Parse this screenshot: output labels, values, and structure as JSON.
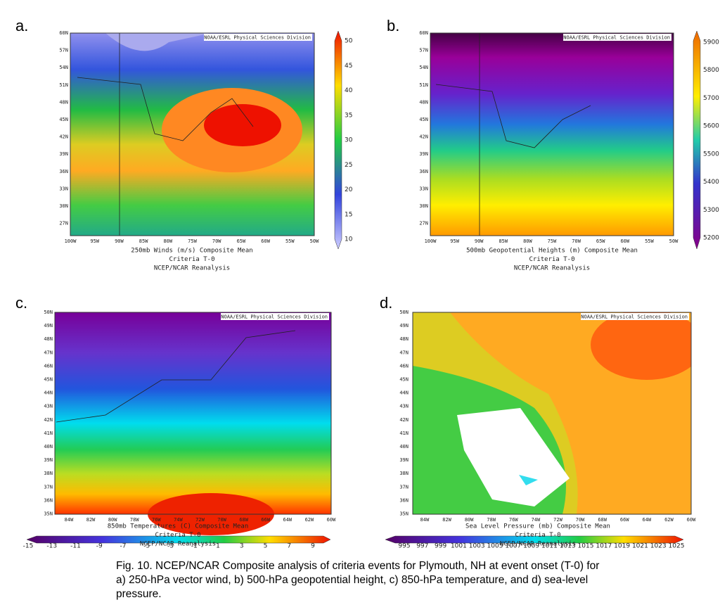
{
  "panels": [
    {
      "letter": "a.",
      "credit": "NOAA/ESRL Physical Sciences Division",
      "lon_ticks": [
        "100W",
        "95W",
        "90W",
        "85W",
        "80W",
        "75W",
        "70W",
        "65W",
        "60W",
        "55W",
        "50W"
      ],
      "lat_ticks": [
        "60N",
        "57N",
        "54N",
        "51N",
        "48N",
        "45N",
        "42N",
        "39N",
        "36N",
        "33N",
        "30N",
        "27N"
      ],
      "caption_lines": [
        "250mb Winds (m/s)    Composite Mean",
        "Criteria T-0",
        "NCEP/NCAR Reanalysis"
      ],
      "colorbar": [
        "10",
        "15",
        "20",
        "25",
        "30",
        "35",
        "40",
        "45",
        "50"
      ]
    },
    {
      "letter": "b.",
      "credit": "NOAA/ESRL Physical Sciences Division",
      "lon_ticks": [
        "100W",
        "95W",
        "90W",
        "85W",
        "80W",
        "75W",
        "70W",
        "65W",
        "60W",
        "55W",
        "50W"
      ],
      "lat_ticks": [
        "60N",
        "57N",
        "54N",
        "51N",
        "48N",
        "45N",
        "42N",
        "39N",
        "36N",
        "33N",
        "30N",
        "27N"
      ],
      "caption_lines": [
        "500mb Geopotential Heights (m)    Composite Mean",
        "Criteria T-0",
        "NCEP/NCAR Reanalysis"
      ],
      "colorbar": [
        "5200",
        "5300",
        "5400",
        "5500",
        "5600",
        "5700",
        "5800",
        "5900"
      ]
    },
    {
      "letter": "c.",
      "credit": "NOAA/ESRL Physical Sciences Division",
      "lon_ticks": [
        "84W",
        "82W",
        "80W",
        "78W",
        "76W",
        "74W",
        "72W",
        "70W",
        "68W",
        "66W",
        "64W",
        "62W",
        "60W"
      ],
      "lat_ticks": [
        "50N",
        "49N",
        "48N",
        "47N",
        "46N",
        "45N",
        "44N",
        "43N",
        "42N",
        "41N",
        "40N",
        "39N",
        "38N",
        "37N",
        "36N",
        "35N"
      ],
      "caption_lines": [
        "850mb Temperatures (C)    Composite Mean",
        "Criteria T-0",
        "NCEP/NCAR Reanalysis"
      ],
      "colorbar": [
        "-15",
        "-13",
        "-11",
        "-9",
        "-7",
        "-5",
        "-3",
        "-1",
        "1",
        "3",
        "5",
        "7",
        "9"
      ]
    },
    {
      "letter": "d.",
      "credit": "NOAA/ESRL Physical Sciences Division",
      "lon_ticks": [
        "84W",
        "82W",
        "80W",
        "78W",
        "76W",
        "74W",
        "72W",
        "70W",
        "68W",
        "66W",
        "64W",
        "62W",
        "60W"
      ],
      "lat_ticks": [
        "50N",
        "49N",
        "48N",
        "47N",
        "46N",
        "45N",
        "44N",
        "43N",
        "42N",
        "41N",
        "40N",
        "39N",
        "38N",
        "37N",
        "36N",
        "35N"
      ],
      "caption_lines": [
        "Sea Level Pressure (mb)    Composite Mean",
        "Criteria T-0",
        "NCEP/NCAR Reanalysis"
      ],
      "colorbar": [
        "995",
        "997",
        "999",
        "1001",
        "1003",
        "1005",
        "1007",
        "1009",
        "1011",
        "1013",
        "1015",
        "1017",
        "1019",
        "1021",
        "1023",
        "1025"
      ]
    }
  ],
  "figure_caption": [
    "Fig. 10.  NCEP/NCAR Composite analysis of criteria events for Plymouth, NH at event onset (T-0) for",
    "a) 250-hPa vector wind, b) 500-hPa geopotential height, c) 850-hPa temperature, and d) sea-level",
    "pressure."
  ]
}
